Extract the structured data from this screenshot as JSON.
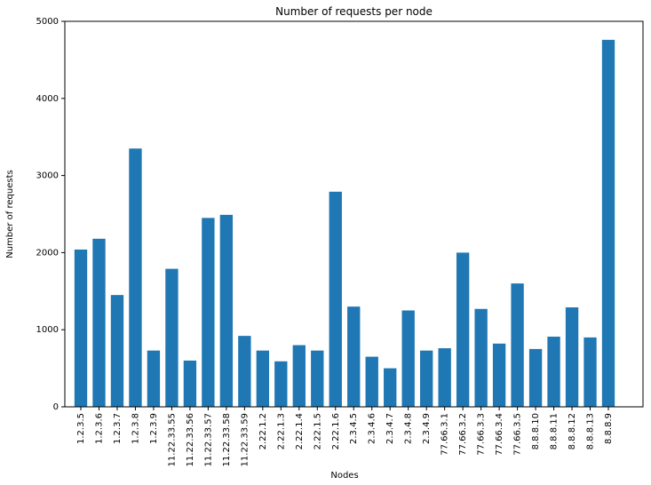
{
  "chart_data": {
    "type": "bar",
    "title": "Number of requests per node",
    "xlabel": "Nodes",
    "ylabel": "Number of requests",
    "ylim": [
      0,
      5000
    ],
    "yticks": [
      0,
      1000,
      2000,
      3000,
      4000,
      5000
    ],
    "grid": false,
    "categories": [
      "1.2.3.5",
      "1.2.3.6",
      "1.2.3.7",
      "1.2.3.8",
      "1.2.3.9",
      "11.22.33.55",
      "11.22.33.56",
      "11.22.33.57",
      "11.22.33.58",
      "11.22.33.59",
      "2.22.1.2",
      "2.22.1.3",
      "2.22.1.4",
      "2.22.1.5",
      "2.22.1.6",
      "2.3.4.5",
      "2.3.4.6",
      "2.3.4.7",
      "2.3.4.8",
      "2.3.4.9",
      "77.66.3.1",
      "77.66.3.2",
      "77.66.3.3",
      "77.66.3.4",
      "77.66.3.5",
      "8.8.8.10",
      "8.8.8.11",
      "8.8.8.12",
      "8.8.8.13",
      "8.8.8.9"
    ],
    "values": [
      2040,
      2180,
      1450,
      3350,
      730,
      1790,
      600,
      2450,
      2490,
      920,
      730,
      590,
      800,
      730,
      2790,
      1300,
      650,
      500,
      1250,
      730,
      760,
      2000,
      1270,
      820,
      1600,
      750,
      910,
      1290,
      900,
      4760
    ],
    "bar_color": "#1f77b4"
  }
}
